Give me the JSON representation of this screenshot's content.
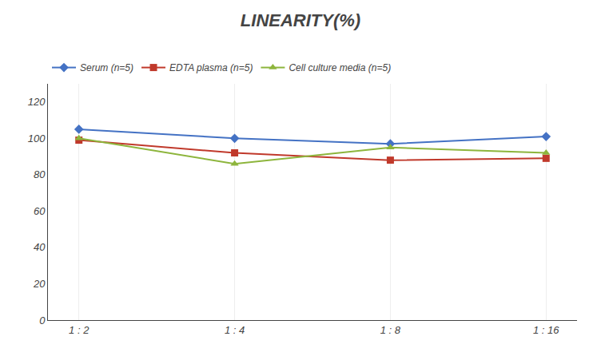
{
  "chart_data": {
    "type": "line",
    "title": "LINEARITY(%)",
    "categories": [
      "1 : 2",
      "1 : 4",
      "1 : 8",
      "1 : 16"
    ],
    "series": [
      {
        "name": "Serum (n=5)",
        "color": "#4472C4",
        "marker": "diamond",
        "values": [
          105,
          100,
          97,
          101
        ]
      },
      {
        "name": "EDTA plasma (n=5)",
        "color": "#C0392B",
        "marker": "square",
        "values": [
          99,
          92,
          88,
          89
        ]
      },
      {
        "name": "Cell culture media (n=5)",
        "color": "#8DB53C",
        "marker": "triangle-up",
        "values": [
          100,
          86,
          95,
          92
        ]
      }
    ],
    "ylim": [
      0,
      130
    ],
    "yticks": [
      0,
      20,
      40,
      60,
      80,
      100,
      120
    ],
    "grid": "x",
    "legend": "top"
  }
}
